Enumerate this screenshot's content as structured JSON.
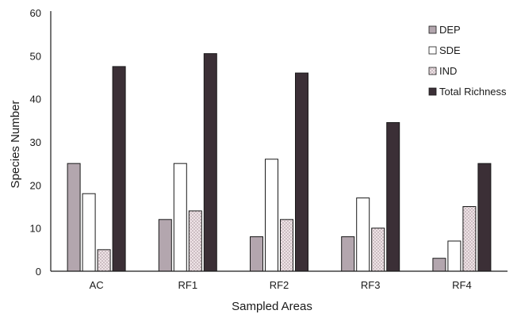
{
  "chart_data": {
    "type": "bar",
    "title": "",
    "xlabel": "Sampled Areas",
    "ylabel": "Species Number",
    "ylim": [
      0,
      60
    ],
    "yticks": [
      0,
      10,
      20,
      30,
      40,
      50,
      60
    ],
    "grid": false,
    "legend_position": "top-right",
    "categories": [
      "AC",
      "RF1",
      "RF2",
      "RF3",
      "RF4"
    ],
    "series": [
      {
        "name": "DEP",
        "values": [
          25,
          12,
          8,
          8,
          3
        ],
        "fill": "#b3a6ae",
        "pattern": "solid"
      },
      {
        "name": "SDE",
        "values": [
          18,
          25,
          26,
          17,
          7
        ],
        "fill": "#ffffff",
        "pattern": "solid"
      },
      {
        "name": "IND",
        "values": [
          5,
          14,
          12,
          10,
          15
        ],
        "fill": "#e6d8dc",
        "pattern": "dotted"
      },
      {
        "name": "Total Richness",
        "values": [
          47.5,
          50.5,
          46,
          34.5,
          25
        ],
        "fill": "#3b2f36",
        "pattern": "solid"
      }
    ]
  }
}
